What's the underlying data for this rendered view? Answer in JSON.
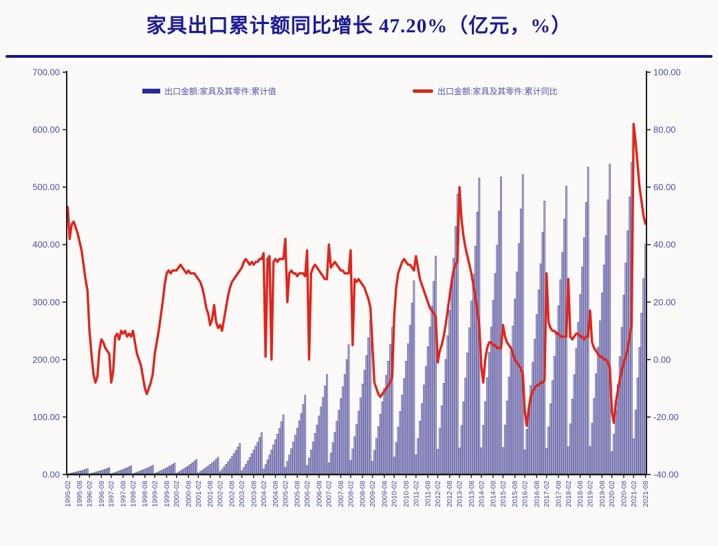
{
  "title": {
    "text": "家具出口累计额同比增长 47.20%（亿元，%）"
  },
  "legend": {
    "bar_label": "出口金额:家具及其零件:累计值",
    "line_label": "出口金额:家具及其零件:累计同比",
    "bar_swatch_color": "#2a2a9c",
    "line_swatch_color": "#d02b1c"
  },
  "colors": {
    "background": "#fbfaf9",
    "title": "#1b1b96",
    "divider": "#15158c",
    "bar_fill": "#b6b2de",
    "bar_edge": "#34347e",
    "line": "#e2241a",
    "axis_line": "#1a1a1a",
    "axis_text": "#4c4caa"
  },
  "chart_data": {
    "type": "bar",
    "subtype": "combo-bar-line",
    "title": "家具出口累计额同比增长 47.20%（亿元，%）",
    "grid": false,
    "legend_position": "top-inside",
    "series_meta": [
      {
        "name": "出口金额:家具及其零件:累计值",
        "type": "bar",
        "axis": "left",
        "color": "#b6b2de"
      },
      {
        "name": "出口金额:家具及其零件:累计同比",
        "type": "line",
        "axis": "right",
        "color": "#e2241a"
      }
    ],
    "left_axis": {
      "min": 0,
      "max": 700,
      "tick_values": [
        700,
        600,
        500,
        400,
        300,
        200,
        100,
        0
      ],
      "tick_labels": [
        "700.00",
        "600.00",
        "500.00",
        "400.00",
        "300.00",
        "200.00",
        "100.00",
        "0.00"
      ]
    },
    "right_axis": {
      "min": -40,
      "max": 100,
      "tick_values": [
        100,
        80,
        60,
        40,
        20,
        0,
        -20,
        -40
      ],
      "tick_labels": [
        "100.00",
        "80.00",
        "60.00",
        "40.00",
        "20.00",
        "0.00",
        "-20.00",
        "-40.00"
      ]
    },
    "x_tick_labels": [
      "1995-02",
      "1995-08",
      "1996-02",
      "1996-08",
      "1997-02",
      "1997-08",
      "1998-02",
      "1998-08",
      "1999-02",
      "1999-08",
      "2000-02",
      "2000-08",
      "2001-02",
      "2001-08",
      "2002-02",
      "2002-08",
      "2003-02",
      "2003-08",
      "2004-02",
      "2004-08",
      "2005-02",
      "2005-08",
      "2006-02",
      "2006-08",
      "2007-02",
      "2007-08",
      "2008-02",
      "2008-08",
      "2009-02",
      "2009-08",
      "2010-02",
      "2010-08",
      "2011-02",
      "2011-08",
      "2012-02",
      "2012-08",
      "2013-02",
      "2013-08",
      "2014-02",
      "2014-08",
      "2015-02",
      "2015-08",
      "2016-02",
      "2016-08",
      "2017-02",
      "2017-08",
      "2018-02",
      "2018-08",
      "2019-02",
      "2019-08",
      "2020-02",
      "2020-08",
      "2021-02",
      "2021-08"
    ],
    "months_per_year": [
      2,
      3,
      4,
      5,
      6,
      7,
      8,
      9,
      10,
      11,
      12
    ],
    "last_point": {
      "label": "2021-08",
      "yoy": 47.2,
      "cumulative": 401
    },
    "years": [
      {
        "year": 1995,
        "cumulative": [
          0.9,
          1.7,
          2.5,
          3.3,
          4.1,
          5.0,
          5.9,
          6.8,
          7.7,
          8.9,
          10
        ],
        "yoy": [
          53,
          42,
          47,
          48,
          46,
          44,
          41,
          38,
          33,
          28,
          24
        ]
      },
      {
        "year": 1996,
        "cumulative": [
          1.1,
          2.0,
          2.9,
          3.9,
          4.9,
          5.9,
          7.0,
          8.1,
          9.2,
          10.6,
          12
        ],
        "yoy": [
          10,
          2,
          -5,
          -8,
          -6,
          3,
          7,
          6,
          4,
          3,
          2
        ]
      },
      {
        "year": 1997,
        "cumulative": [
          1.4,
          2.5,
          3.7,
          4.9,
          6.2,
          7.4,
          8.8,
          10.1,
          11.6,
          13.3,
          15
        ],
        "yoy": [
          -8,
          -4,
          8,
          9,
          7,
          10,
          9,
          10,
          8,
          9,
          8
        ]
      },
      {
        "year": 1998,
        "cumulative": [
          1.4,
          2.6,
          3.9,
          5.2,
          6.6,
          7.9,
          9.4,
          10.8,
          12.3,
          14.2,
          16
        ],
        "yoy": [
          10,
          6,
          2,
          0,
          -2,
          -6,
          -10,
          -12,
          -10,
          -8,
          -5
        ]
      },
      {
        "year": 1999,
        "cumulative": [
          1.8,
          3.3,
          4.9,
          6.5,
          8.2,
          9.9,
          11.7,
          13.5,
          15.4,
          17.7,
          20
        ],
        "yoy": [
          2,
          6,
          10,
          15,
          20,
          26,
          30,
          31,
          30,
          31,
          31
        ]
      },
      {
        "year": 2000,
        "cumulative": [
          2.3,
          4.3,
          6.4,
          8.5,
          10.7,
          12.9,
          15.2,
          17.6,
          20.0,
          23.0,
          26
        ],
        "yoy": [
          31,
          32,
          33,
          32,
          31,
          30,
          31,
          30,
          30,
          30,
          29
        ]
      },
      {
        "year": 2001,
        "cumulative": [
          2.7,
          5.0,
          7.4,
          9.8,
          12.3,
          14.9,
          17.6,
          20.3,
          23.1,
          26.6,
          30
        ],
        "yoy": [
          28,
          27,
          25,
          22,
          18,
          16,
          12,
          14,
          19,
          13,
          11
        ]
      },
      {
        "year": 2002,
        "cumulative": [
          4.9,
          8.9,
          13.2,
          17.6,
          22.1,
          26.7,
          31.6,
          36.5,
          41.6,
          47.8,
          54
        ],
        "yoy": [
          12,
          10,
          14,
          18,
          22,
          25,
          27,
          28,
          29,
          30,
          31
        ]
      },
      {
        "year": 2003,
        "cumulative": [
          6.6,
          12.0,
          17.9,
          23.7,
          29.9,
          36.1,
          42.7,
          49.3,
          56.2,
          64.6,
          73
        ],
        "yoy": [
          32,
          34,
          35,
          34,
          33,
          34,
          33,
          34,
          34,
          35,
          35
        ]
      },
      {
        "year": 2004,
        "cumulative": [
          9.4,
          17.2,
          25.5,
          33.8,
          42.6,
          51.5,
          60.8,
          70.2,
          80.1,
          92.0,
          104
        ],
        "yoy": [
          37,
          1,
          35,
          36,
          0,
          34,
          35,
          34,
          35,
          35,
          35
        ]
      },
      {
        "year": 2005,
        "cumulative": [
          12.4,
          22.8,
          33.8,
          44.9,
          56.6,
          68.3,
          80.7,
          93.2,
          106.3,
          122.1,
          138
        ],
        "yoy": [
          42,
          20,
          30,
          31,
          30,
          30,
          29,
          30,
          30,
          30,
          29
        ]
      },
      {
        "year": 2006,
        "cumulative": [
          15.7,
          28.7,
          42.6,
          56.6,
          71.3,
          86.1,
          101.8,
          117.5,
          134.0,
          154.0,
          174
        ],
        "yoy": [
          38,
          0,
          30,
          32,
          33,
          32,
          31,
          30,
          29,
          28,
          28
        ]
      },
      {
        "year": 2007,
        "cumulative": [
          20.3,
          37.3,
          55.4,
          73.5,
          92.7,
          111.9,
          132.2,
          152.6,
          174.0,
          200.0,
          226
        ],
        "yoy": [
          40,
          32,
          33,
          34,
          33,
          32,
          31,
          31,
          30,
          30,
          30
        ]
      },
      {
        "year": 2008,
        "cumulative": [
          24.2,
          44.4,
          65.9,
          87.4,
          110.3,
          133.2,
          157.4,
          181.6,
          207.1,
          238.1,
          269
        ],
        "yoy": [
          38,
          5,
          28,
          27,
          28,
          27,
          26,
          25,
          23,
          21,
          18
        ]
      },
      {
        "year": 2009,
        "cumulative": [
          23.0,
          42.2,
          62.7,
          83.2,
          105.0,
          126.7,
          149.8,
          172.8,
          197.1,
          226.6,
          256
        ],
        "yoy": [
          5,
          -8,
          -10,
          -12,
          -13,
          -12,
          -11,
          -10,
          -9,
          -8,
          -6
        ]
      },
      {
        "year": 2010,
        "cumulative": [
          30.3,
          55.6,
          82.6,
          109.5,
          138.2,
          166.8,
          197.1,
          227.5,
          259.5,
          298.2,
          337
        ],
        "yoy": [
          15,
          25,
          30,
          32,
          34,
          35,
          34,
          33,
          33,
          32,
          31
        ]
      },
      {
        "year": 2011,
        "cumulative": [
          34.2,
          62.7,
          93.1,
          123.5,
          155.8,
          188.1,
          222.3,
          256.5,
          292.6,
          336.3,
          380
        ],
        "yoy": [
          36,
          32,
          28,
          26,
          24,
          22,
          20,
          18,
          17,
          16,
          15
        ]
      },
      {
        "year": 2012,
        "cumulative": [
          43.9,
          80.5,
          119.6,
          158.6,
          200.1,
          241.6,
          285.5,
          329.4,
          375.8,
          431.9,
          488
        ],
        "yoy": [
          -1,
          3,
          5,
          8,
          12,
          17,
          22,
          27,
          31,
          33,
          34
        ]
      },
      {
        "year": 2013,
        "cumulative": [
          46.4,
          85.1,
          126.4,
          167.7,
          211.6,
          255.4,
          301.9,
          348.3,
          397.3,
          456.7,
          516
        ],
        "yoy": [
          60,
          49,
          43,
          39,
          36,
          33,
          30,
          26,
          22,
          17,
          12
        ]
      },
      {
        "year": 2014,
        "cumulative": [
          46.6,
          85.5,
          126.9,
          168.4,
          212.4,
          256.4,
          303.0,
          349.7,
          398.9,
          458.4,
          518
        ],
        "yoy": [
          -2,
          -8,
          0,
          4,
          6,
          6,
          5,
          5,
          4,
          4,
          4
        ]
      },
      {
        "year": 2015,
        "cumulative": [
          47.0,
          86.1,
          127.9,
          169.7,
          214.0,
          258.4,
          305.4,
          352.4,
          401.9,
          462.0,
          522
        ],
        "yoy": [
          12,
          8,
          6,
          5,
          4,
          2,
          0,
          -1,
          -2,
          -3,
          -5
        ]
      },
      {
        "year": 2016,
        "cumulative": [
          42.8,
          78.5,
          116.6,
          154.7,
          195.2,
          235.6,
          278.5,
          321.3,
          366.5,
          421.3,
          476
        ],
        "yoy": [
          -18,
          -23,
          -17,
          -13,
          -11,
          -10,
          -9,
          -9,
          -8,
          -8,
          -7
        ]
      },
      {
        "year": 2017,
        "cumulative": [
          45.2,
          82.8,
          123.0,
          163.2,
          205.8,
          248.5,
          293.7,
          338.9,
          386.5,
          444.3,
          502
        ],
        "yoy": [
          30,
          13,
          11,
          10,
          10,
          9,
          9,
          8,
          8,
          8,
          8
        ]
      },
      {
        "year": 2018,
        "cumulative": [
          48.2,
          88.3,
          131.1,
          173.9,
          219.4,
          264.8,
          313.0,
          361.1,
          412.0,
          473.5,
          535
        ],
        "yoy": [
          28,
          8,
          7,
          8,
          9,
          9,
          8,
          8,
          7,
          8,
          8
        ]
      },
      {
        "year": 2019,
        "cumulative": [
          48.6,
          89.1,
          132.3,
          175.5,
          221.4,
          267.3,
          315.9,
          364.5,
          415.8,
          477.9,
          540
        ],
        "yoy": [
          17,
          6,
          4,
          3,
          2,
          1,
          1,
          0,
          0,
          -1,
          -3
        ]
      },
      {
        "year": 2020,
        "cumulative": [
          40,
          70,
          112,
          156,
          205,
          256,
          312,
          368,
          424,
          483,
          543
        ],
        "yoy": [
          -18,
          -22,
          -15,
          -11,
          -7,
          -4,
          -1,
          1,
          4,
          8,
          12
        ]
      },
      {
        "year": 2021,
        "cumulative": [
          62,
          112,
          168,
          221,
          281,
          341,
          401
        ],
        "yoy": [
          82,
          76,
          68,
          60,
          55,
          50,
          47.2
        ]
      }
    ]
  }
}
